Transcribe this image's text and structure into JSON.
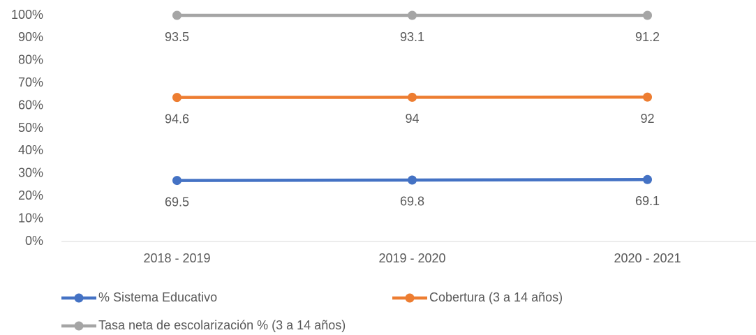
{
  "chart_data": {
    "type": "line",
    "stacking": "percent",
    "categories": [
      "2018 - 2019",
      "2019 - 2020",
      "2020 - 2021"
    ],
    "series": [
      {
        "name": "% Sistema Educativo",
        "color": "#4472c4",
        "values": [
          69.5,
          69.8,
          69.1
        ]
      },
      {
        "name": "Cobertura (3 a 14 años)",
        "color": "#ed7d31",
        "values": [
          94.6,
          94,
          92
        ]
      },
      {
        "name": "Tasa neta de escolarización % (3 a 14 años)",
        "color": "#a5a5a5",
        "values": [
          93.5,
          93.1,
          91.2
        ]
      }
    ],
    "ylim": [
      0,
      100
    ],
    "yticks": [
      {
        "value": 0,
        "label": "0%"
      },
      {
        "value": 10,
        "label": "10%"
      },
      {
        "value": 20,
        "label": "20%"
      },
      {
        "value": 30,
        "label": "30%"
      },
      {
        "value": 40,
        "label": "40%"
      },
      {
        "value": 50,
        "label": "50%"
      },
      {
        "value": 60,
        "label": "60%"
      },
      {
        "value": 70,
        "label": "70%"
      },
      {
        "value": 80,
        "label": "80%"
      },
      {
        "value": 90,
        "label": "90%"
      },
      {
        "value": 100,
        "label": "100%"
      }
    ],
    "grid": false,
    "legend": "bottom"
  }
}
